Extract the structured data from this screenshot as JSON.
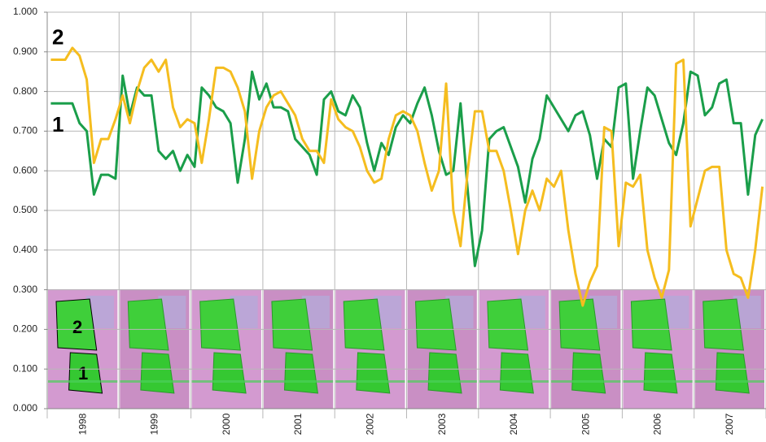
{
  "chart_data": {
    "type": "line",
    "categories": [
      null,
      null,
      null,
      null,
      null,
      "1998",
      null,
      null,
      null,
      null,
      null,
      null,
      null,
      null,
      null,
      "1999",
      null,
      null,
      null,
      null,
      null,
      null,
      null,
      null,
      null,
      "2000",
      null,
      null,
      null,
      null,
      null,
      null,
      null,
      null,
      null,
      "2001",
      null,
      null,
      null,
      null,
      null,
      null,
      null,
      null,
      null,
      "2002",
      null,
      null,
      null,
      null,
      null,
      null,
      null,
      null,
      null,
      "2003",
      null,
      null,
      null,
      null,
      null,
      null,
      null,
      null,
      null,
      "2004",
      null,
      null,
      null,
      null,
      null,
      null,
      null,
      null,
      null,
      "2005",
      null,
      null,
      null,
      null,
      null,
      null,
      null,
      null,
      null,
      "2006",
      null,
      null,
      null,
      null,
      null,
      null,
      null,
      null,
      null,
      "2007",
      null,
      null,
      null,
      null
    ],
    "series": [
      {
        "name": "1",
        "color": "#1a9e4a",
        "values": [
          0.77,
          0.77,
          0.77,
          0.77,
          0.72,
          0.7,
          0.54,
          0.59,
          0.59,
          0.58,
          0.84,
          0.74,
          0.81,
          0.79,
          0.79,
          0.65,
          0.63,
          0.65,
          0.6,
          0.64,
          0.61,
          0.81,
          0.79,
          0.76,
          0.75,
          0.72,
          0.57,
          0.68,
          0.85,
          0.78,
          0.82,
          0.76,
          0.76,
          0.75,
          0.68,
          0.66,
          0.64,
          0.59,
          0.78,
          0.8,
          0.75,
          0.74,
          0.79,
          0.76,
          0.67,
          0.6,
          0.67,
          0.64,
          0.71,
          0.74,
          0.72,
          0.77,
          0.81,
          0.74,
          0.65,
          0.59,
          0.6,
          0.77,
          0.55,
          0.36,
          0.45,
          0.68,
          0.7,
          0.71,
          0.66,
          0.61,
          0.52,
          0.63,
          0.68,
          0.79,
          0.76,
          0.73,
          0.7,
          0.74,
          0.75,
          0.69,
          0.58,
          0.68,
          0.66,
          0.81,
          0.82,
          0.58,
          0.7,
          0.81,
          0.79,
          0.73,
          0.67,
          0.64,
          0.72,
          0.85,
          0.84,
          0.74,
          0.76,
          0.82,
          0.83,
          0.72,
          0.72,
          0.54,
          0.69,
          0.73
        ]
      },
      {
        "name": "2",
        "color": "#f5bd1f",
        "values": [
          0.88,
          0.88,
          0.88,
          0.91,
          0.89,
          0.83,
          0.62,
          0.68,
          0.68,
          0.73,
          0.79,
          0.72,
          0.8,
          0.86,
          0.88,
          0.85,
          0.88,
          0.76,
          0.71,
          0.73,
          0.72,
          0.62,
          0.73,
          0.86,
          0.86,
          0.85,
          0.81,
          0.75,
          0.58,
          0.7,
          0.76,
          0.79,
          0.8,
          0.77,
          0.74,
          0.68,
          0.65,
          0.65,
          0.62,
          0.78,
          0.73,
          0.71,
          0.7,
          0.66,
          0.6,
          0.57,
          0.58,
          0.68,
          0.74,
          0.75,
          0.74,
          0.7,
          0.62,
          0.55,
          0.6,
          0.82,
          0.5,
          0.41,
          0.6,
          0.75,
          0.75,
          0.65,
          0.65,
          0.6,
          0.5,
          0.39,
          0.5,
          0.55,
          0.5,
          0.58,
          0.56,
          0.6,
          0.45,
          0.34,
          0.26,
          0.32,
          0.36,
          0.71,
          0.7,
          0.41,
          0.57,
          0.56,
          0.59,
          0.4,
          0.33,
          0.28,
          0.35,
          0.87,
          0.88,
          0.46,
          0.53,
          0.6,
          0.61,
          0.61,
          0.4,
          0.34,
          0.33,
          0.28,
          0.4,
          0.56
        ]
      }
    ],
    "ylim": [
      0,
      1
    ],
    "yticks": [
      {
        "value": 0,
        "label": "0.000"
      },
      {
        "value": 0.1,
        "label": "0.100"
      },
      {
        "value": 0.2,
        "label": "0.200"
      },
      {
        "value": 0.3,
        "label": "0.300"
      },
      {
        "value": 0.4,
        "label": "0.400"
      },
      {
        "value": 0.5,
        "label": "0.500"
      },
      {
        "value": 0.6,
        "label": "0.600"
      },
      {
        "value": 0.7,
        "label": "0.700"
      },
      {
        "value": 0.8,
        "label": "0.800"
      },
      {
        "value": 0.9,
        "label": "0.900"
      },
      {
        "value": 1,
        "label": "1.000"
      }
    ],
    "grid": true,
    "annotations": [
      "2",
      "1"
    ]
  }
}
